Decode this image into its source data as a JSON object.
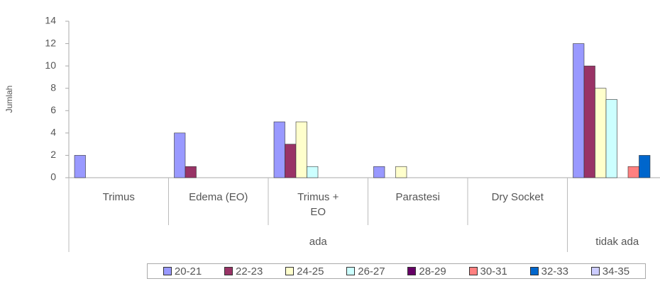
{
  "chart_data": {
    "type": "bar",
    "y_label": "Jumlah",
    "categories": [
      "Trimus",
      "Edema (EO)",
      "Trimus + EO",
      "Parastesi",
      "Dry Socket",
      null
    ],
    "groups": [
      {
        "name": "ada",
        "size": 5
      },
      {
        "name": "tidak ada",
        "size": 1
      }
    ],
    "series": [
      {
        "name": "20-21",
        "color": "#9999ff",
        "values": [
          2,
          4,
          5,
          1,
          0,
          12
        ]
      },
      {
        "name": "22-23",
        "color": "#993366",
        "values": [
          0,
          1,
          3,
          0,
          0,
          10
        ]
      },
      {
        "name": "24-25",
        "color": "#ffffcc",
        "values": [
          0,
          0,
          5,
          1,
          0,
          8
        ]
      },
      {
        "name": "26-27",
        "color": "#ccffff",
        "values": [
          0,
          0,
          1,
          0,
          0,
          7
        ]
      },
      {
        "name": "28-29",
        "color": "#660066",
        "values": [
          0,
          0,
          0,
          0,
          0,
          0
        ]
      },
      {
        "name": "30-31",
        "color": "#ff8080",
        "values": [
          0,
          0,
          0,
          0,
          0,
          1
        ]
      },
      {
        "name": "32-33",
        "color": "#0066cc",
        "values": [
          0,
          0,
          0,
          0,
          0,
          2
        ]
      },
      {
        "name": "34-35",
        "color": "#ccccff",
        "values": [
          0,
          0,
          0,
          0,
          0,
          0
        ]
      }
    ],
    "ylim": [
      0,
      14
    ],
    "yticks": [
      0,
      2,
      4,
      6,
      8,
      10,
      12,
      14
    ],
    "grid": false,
    "legend": "bottom"
  }
}
